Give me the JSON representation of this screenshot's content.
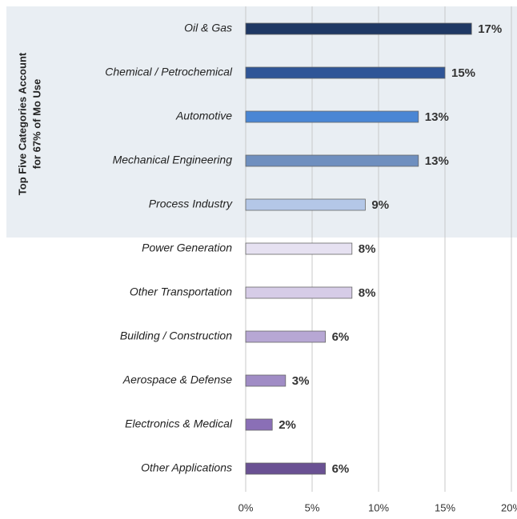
{
  "chart_data": {
    "type": "hbar",
    "side_label": [
      "Top Five Categories Account",
      "for 67% of Mo Use"
    ],
    "categories": [
      "Oil & Gas",
      "Chemical / Petrochemical",
      "Automotive",
      "Mechanical Engineering",
      "Process Industry",
      "Power Generation",
      "Other Transportation",
      "Building / Construction",
      "Aerospace & Defense",
      "Electronics & Medical",
      "Other Applications"
    ],
    "values": [
      17,
      15,
      13,
      13,
      9,
      8,
      8,
      6,
      3,
      2,
      6
    ],
    "value_labels": [
      "17%",
      "15%",
      "13%",
      "13%",
      "9%",
      "8%",
      "8%",
      "6%",
      "3%",
      "2%",
      "6%"
    ],
    "colors": [
      "#1f3864",
      "#2f5597",
      "#4a86d4",
      "#6f8fbf",
      "#b4c7e7",
      "#e6e1f1",
      "#d6cce7",
      "#b7a7d4",
      "#a08cc5",
      "#8a6fb6",
      "#6a5193"
    ],
    "xlim": [
      0,
      20
    ],
    "xticks": [
      {
        "value": 0,
        "label": "0%"
      },
      {
        "value": 5,
        "label": "5%"
      },
      {
        "value": 10,
        "label": "10%"
      },
      {
        "value": 15,
        "label": "15%"
      },
      {
        "value": 20,
        "label": "20%"
      }
    ],
    "grid": true
  }
}
